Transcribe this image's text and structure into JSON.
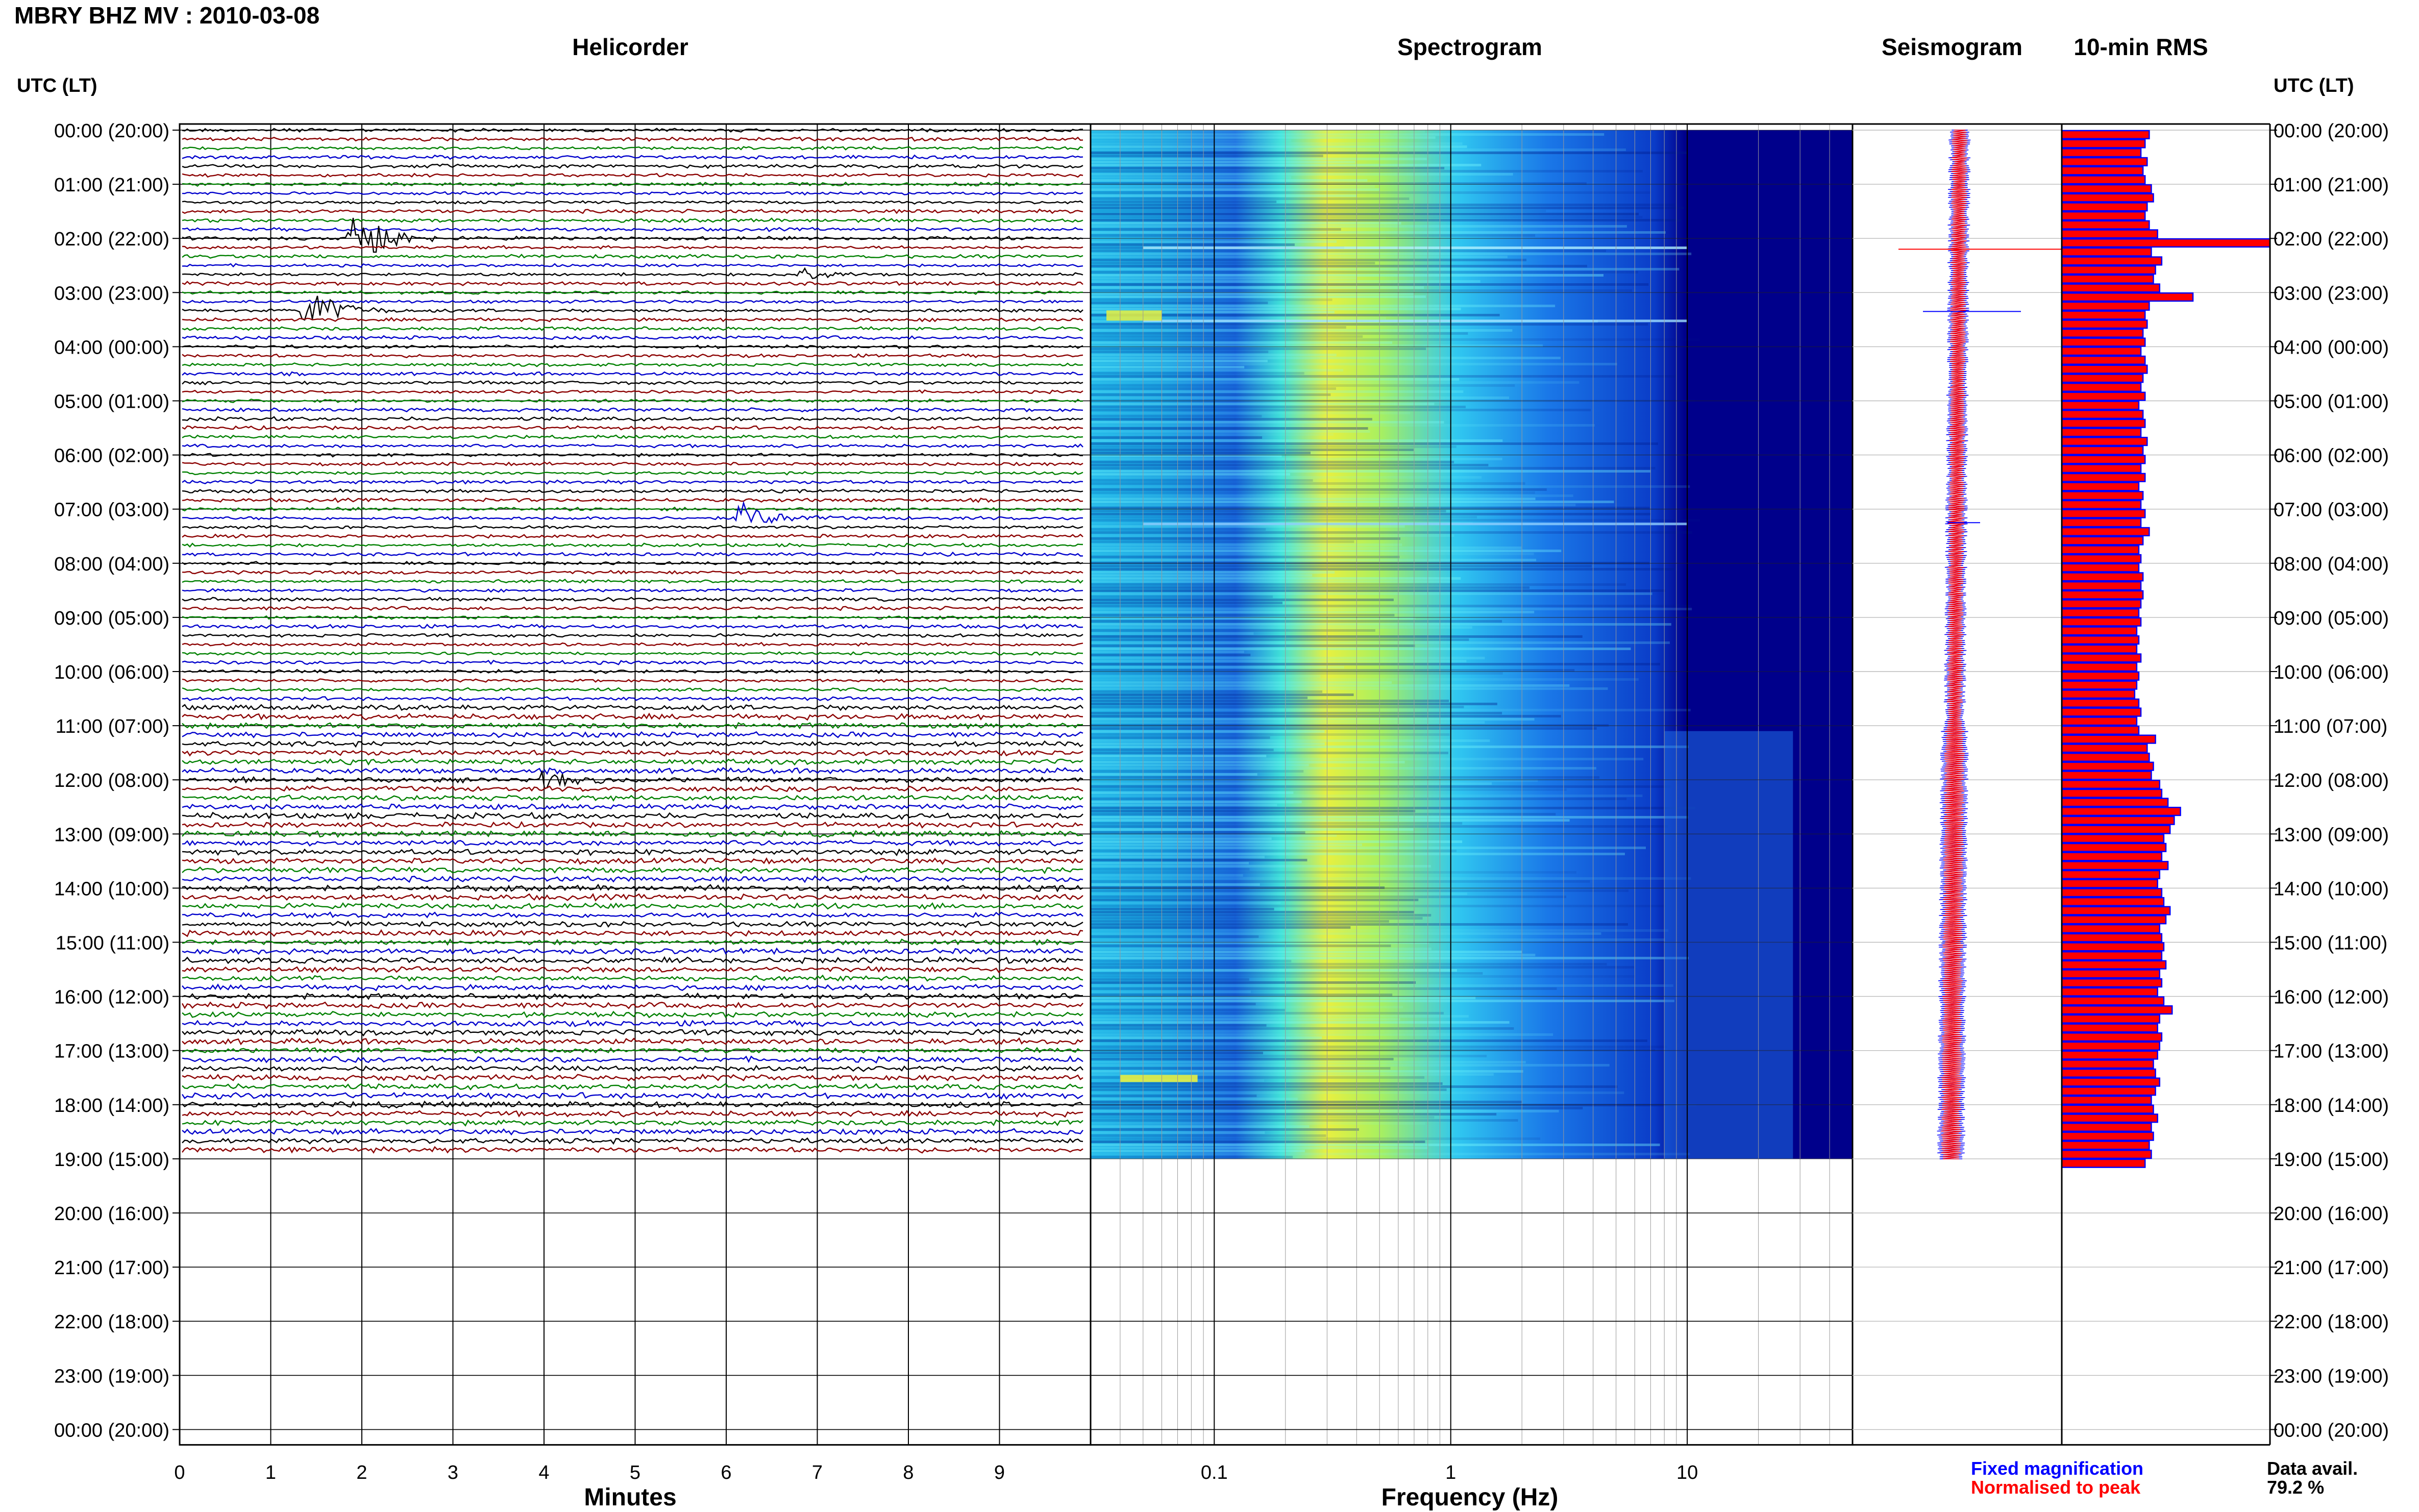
{
  "page_title": "MBRY BHZ MV : 2010-03-08",
  "panels": {
    "helicorder": "Helicorder",
    "spectrogram": "Spectrogram",
    "seismogram": "Seismogram",
    "rms": "10-min RMS"
  },
  "time_axis_label": "UTC (LT)",
  "chart_data": [
    {
      "type": "line",
      "name": "helicorder",
      "title": "Helicorder",
      "xlabel": "Minutes",
      "x_ticks": [
        "0",
        "1",
        "2",
        "3",
        "4",
        "5",
        "6",
        "7",
        "8",
        "9"
      ],
      "xlim": [
        0,
        10
      ],
      "row_labels": [
        "00:00 (20:00)",
        "01:00 (21:00)",
        "02:00 (22:00)",
        "03:00 (23:00)",
        "04:00 (00:00)",
        "05:00 (01:00)",
        "06:00 (02:00)",
        "07:00 (03:00)",
        "08:00 (04:00)",
        "09:00 (05:00)",
        "10:00 (06:00)",
        "11:00 (07:00)",
        "12:00 (08:00)",
        "13:00 (09:00)",
        "14:00 (10:00)",
        "15:00 (11:00)",
        "16:00 (12:00)",
        "17:00 (13:00)",
        "18:00 (14:00)",
        "19:00 (15:00)",
        "20:00 (16:00)",
        "21:00 (17:00)",
        "22:00 (18:00)",
        "23:00 (19:00)",
        "00:00 (20:00)"
      ],
      "trace_colors": [
        "#000000",
        "#8b0000",
        "#008000",
        "#0000cc"
      ],
      "traces_per_hour": 6,
      "data_hours": 19,
      "events": [
        {
          "hour": 2.0,
          "minute": 1.9,
          "amplitude": 3.0,
          "color": "#8b0000"
        },
        {
          "hour": 3.33,
          "minute": 1.4,
          "amplitude": 2.0,
          "color": "#000000"
        },
        {
          "hour": 7.17,
          "minute": 6.2,
          "amplitude": 1.2,
          "color": "#008000"
        },
        {
          "hour": 2.67,
          "minute": 6.9,
          "amplitude": 0.6,
          "color": "#000000"
        },
        {
          "hour": 12.0,
          "minute": 4.0,
          "amplitude": 0.7,
          "color": "#008000"
        }
      ]
    },
    {
      "type": "heatmap",
      "name": "spectrogram",
      "title": "Spectrogram",
      "xlabel": "Frequency (Hz)",
      "x_scale": "log",
      "xlim": [
        0.03,
        50
      ],
      "x_ticks": [
        "0.1",
        "1",
        "10"
      ],
      "data_hours": 19,
      "peak_frequency_hz": 0.33,
      "colormap": [
        "#00008b",
        "#0000ff",
        "#00bfff",
        "#40e0d0",
        "#ffff00"
      ]
    },
    {
      "type": "line",
      "name": "seismogram",
      "title": "Seismogram",
      "series": [
        {
          "name": "Fixed magnification",
          "color": "#0000ff"
        },
        {
          "name": "Normalised to peak",
          "color": "#ff0000"
        }
      ],
      "data_hours": 19
    },
    {
      "type": "bar",
      "name": "rms",
      "title": "10-min RMS",
      "orientation": "horizontal",
      "values": [
        0.42,
        0.4,
        0.38,
        0.41,
        0.39,
        0.4,
        0.43,
        0.44,
        0.41,
        0.4,
        0.42,
        0.46,
        1.0,
        0.43,
        0.48,
        0.45,
        0.44,
        0.47,
        0.63,
        0.42,
        0.4,
        0.41,
        0.39,
        0.4,
        0.38,
        0.4,
        0.41,
        0.39,
        0.38,
        0.4,
        0.37,
        0.39,
        0.4,
        0.38,
        0.41,
        0.39,
        0.4,
        0.38,
        0.4,
        0.37,
        0.39,
        0.38,
        0.4,
        0.38,
        0.42,
        0.39,
        0.37,
        0.38,
        0.37,
        0.39,
        0.38,
        0.39,
        0.38,
        0.37,
        0.38,
        0.36,
        0.37,
        0.36,
        0.38,
        0.36,
        0.37,
        0.36,
        0.35,
        0.37,
        0.38,
        0.36,
        0.37,
        0.45,
        0.41,
        0.42,
        0.44,
        0.43,
        0.47,
        0.48,
        0.51,
        0.57,
        0.54,
        0.52,
        0.49,
        0.5,
        0.48,
        0.51,
        0.47,
        0.46,
        0.48,
        0.49,
        0.52,
        0.5,
        0.47,
        0.48,
        0.49,
        0.48,
        0.5,
        0.47,
        0.48,
        0.46,
        0.49,
        0.53,
        0.47,
        0.46,
        0.48,
        0.47,
        0.46,
        0.44,
        0.45,
        0.47,
        0.45,
        0.43,
        0.44,
        0.46,
        0.43,
        0.44,
        0.42,
        0.43,
        0.4
      ],
      "bar_color": "#ff0000",
      "edge_color": "#0000ff"
    }
  ],
  "legend": {
    "fixed": "Fixed magnification",
    "normalised": "Normalised to peak",
    "fixed_color": "#0000ff",
    "normalised_color": "#ff0000"
  },
  "data_avail": {
    "label": "Data avail.",
    "value": "79.2 %"
  }
}
